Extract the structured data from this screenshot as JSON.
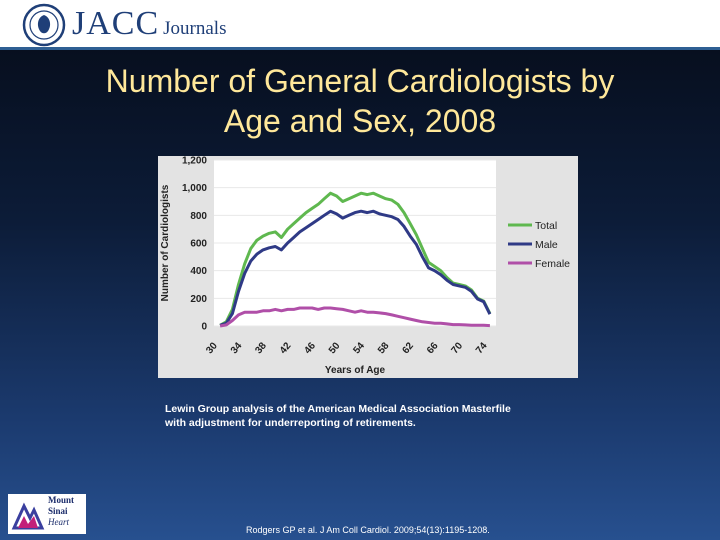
{
  "header": {
    "logo_main": "JACC",
    "logo_sub": "Journals"
  },
  "slide": {
    "title_line1": "Number of General Cardiologists by",
    "title_line2": "Age and Sex, 2008",
    "caption_line1": "Lewin Group analysis of the American Medical Association Masterfile",
    "caption_line2": "with adjustment for underreporting of retirements.",
    "citation": "Rodgers GP et al. J Am Coll Cardiol. 2009;54(13):1195-1208.",
    "sinai_line1": "Mount",
    "sinai_line2": "Sinai",
    "sinai_line3": "Heart"
  },
  "colors": {
    "total": "#5fb84f",
    "male": "#2f3a86",
    "female": "#b04fa8",
    "title": "#ffe89a"
  },
  "chart_data": {
    "type": "line",
    "xlabel": "Years of Age",
    "ylabel": "Number of Cardiologists",
    "xlim": [
      30,
      76
    ],
    "ylim": [
      0,
      1200
    ],
    "x_ticks": [
      "30",
      "34",
      "38",
      "42",
      "46",
      "50",
      "54",
      "58",
      "62",
      "66",
      "70",
      "74"
    ],
    "y_ticks": [
      "0",
      "200",
      "400",
      "600",
      "800",
      "1,000",
      "1,200"
    ],
    "legend_position": "right",
    "x": [
      31,
      32,
      33,
      34,
      35,
      36,
      37,
      38,
      39,
      40,
      41,
      42,
      43,
      44,
      45,
      46,
      47,
      48,
      49,
      50,
      51,
      52,
      53,
      54,
      55,
      56,
      57,
      58,
      59,
      60,
      61,
      62,
      63,
      64,
      65,
      66,
      67,
      68,
      69,
      70,
      71,
      72,
      73,
      74,
      75
    ],
    "series": [
      {
        "name": "Total",
        "values": [
          5,
          30,
          120,
          300,
          450,
          560,
          620,
          650,
          670,
          680,
          640,
          700,
          740,
          780,
          820,
          850,
          880,
          920,
          960,
          940,
          900,
          920,
          940,
          960,
          950,
          960,
          940,
          920,
          910,
          880,
          820,
          740,
          660,
          560,
          460,
          430,
          400,
          350,
          310,
          300,
          290,
          260,
          200,
          180,
          90
        ]
      },
      {
        "name": "Male",
        "values": [
          5,
          20,
          90,
          250,
          380,
          470,
          520,
          550,
          565,
          575,
          550,
          600,
          640,
          680,
          710,
          740,
          770,
          800,
          830,
          810,
          780,
          800,
          820,
          830,
          820,
          830,
          810,
          800,
          790,
          770,
          720,
          650,
          590,
          500,
          420,
          400,
          370,
          330,
          300,
          290,
          280,
          250,
          195,
          175,
          85
        ]
      },
      {
        "name": "Female",
        "values": [
          0,
          8,
          40,
          80,
          100,
          100,
          100,
          110,
          110,
          120,
          110,
          120,
          120,
          130,
          130,
          130,
          120,
          130,
          130,
          125,
          120,
          110,
          100,
          110,
          100,
          100,
          95,
          90,
          80,
          70,
          60,
          50,
          40,
          30,
          25,
          20,
          20,
          15,
          10,
          10,
          8,
          6,
          5,
          5,
          3
        ]
      }
    ]
  }
}
